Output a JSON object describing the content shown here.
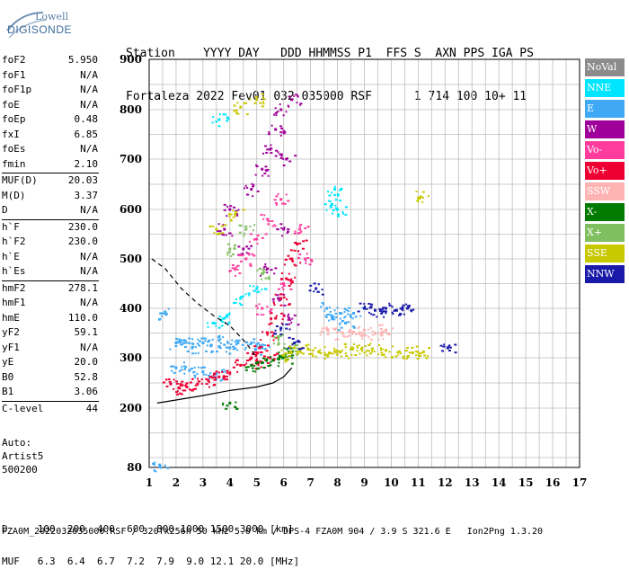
{
  "logo": {
    "line1": "Lowell",
    "line2": "DIGISONDE"
  },
  "header": {
    "labels": "Station    YYYY DAY   DDD HHMMSS P1  FFS S  AXN PPS IGA PS",
    "values": "Fortaleza 2022 Fev01 032 035000 RSF      1 714 100 10+ 11"
  },
  "params": {
    "group1": [
      {
        "k": "foF2",
        "v": "5.950"
      },
      {
        "k": "foF1",
        "v": "N/A"
      },
      {
        "k": "foF1p",
        "v": "N/A"
      },
      {
        "k": "foE",
        "v": "N/A"
      },
      {
        "k": "foEp",
        "v": "0.48"
      },
      {
        "k": "fxI",
        "v": "6.85"
      },
      {
        "k": "foEs",
        "v": "N/A"
      },
      {
        "k": "fmin",
        "v": "2.10"
      }
    ],
    "group2": [
      {
        "k": "MUF(D)",
        "v": "20.03"
      },
      {
        "k": "M(D)",
        "v": "3.37"
      },
      {
        "k": "D",
        "v": "N/A"
      }
    ],
    "group3": [
      {
        "k": "h`F",
        "v": "230.0"
      },
      {
        "k": "h`F2",
        "v": "230.0"
      },
      {
        "k": "h`E",
        "v": "N/A"
      },
      {
        "k": "h`Es",
        "v": "N/A"
      }
    ],
    "group4": [
      {
        "k": "hmF2",
        "v": "278.1"
      },
      {
        "k": "hmF1",
        "v": "N/A"
      },
      {
        "k": "hmE",
        "v": "110.0"
      },
      {
        "k": "yF2",
        "v": "59.1"
      },
      {
        "k": "yF1",
        "v": "N/A"
      },
      {
        "k": "yE",
        "v": "20.0"
      },
      {
        "k": "B0",
        "v": "52.8"
      },
      {
        "k": "B1",
        "v": "3.06"
      }
    ],
    "group5": [
      {
        "k": "C-level",
        "v": "44"
      }
    ]
  },
  "auto": {
    "l1": "Auto:",
    "l2": "Artist5",
    "l3": "500200"
  },
  "legend": [
    {
      "label": "NoVal",
      "color": "#8c8c8c"
    },
    {
      "label": "NNE",
      "color": "#00e5ff"
    },
    {
      "label": "E",
      "color": "#3fa9f5"
    },
    {
      "label": "W",
      "color": "#a0009a"
    },
    {
      "label": "Vo-",
      "color": "#ff3c9e"
    },
    {
      "label": "Vo+",
      "color": "#ee0033"
    },
    {
      "label": "SSW",
      "color": "#ffb3b3"
    },
    {
      "label": "X-",
      "color": "#007a00"
    },
    {
      "label": "X+",
      "color": "#7fbf5f"
    },
    {
      "label": "SSE",
      "color": "#c8c800"
    },
    {
      "label": "NNW",
      "color": "#1a1aaa"
    }
  ],
  "footer": {
    "row1": "D     100  200  400  600  800 1000 1500 3000 [km]",
    "row2": "MUF   6.3  6.4  6.7  7.2  7.9  9.0 12.1 20.0 [MHz]",
    "row3": "FZA0M_2022032035000.RSF / 320fx256h 50 kHz 5.0 km / DPS-4 FZA0M 904 / 3.9 S 321.6 E   Ion2Png 1.3.20"
  },
  "chart_data": {
    "type": "scatter",
    "xlim": [
      1,
      17
    ],
    "ylim": [
      80,
      900
    ],
    "x_ticks": [
      1,
      2,
      3,
      4,
      5,
      6,
      7,
      8,
      9,
      10,
      11,
      12,
      13,
      14,
      15,
      16,
      17
    ],
    "y_ticks": [
      80,
      200,
      300,
      400,
      500,
      600,
      700,
      800,
      900
    ],
    "series": [
      {
        "name": "E",
        "points": [
          [
            1.6,
            390
          ],
          [
            2.0,
            330
          ],
          [
            2.3,
            335
          ],
          [
            2.6,
            320
          ],
          [
            3.0,
            330
          ],
          [
            3.3,
            325
          ],
          [
            3.6,
            335
          ],
          [
            4.0,
            320
          ],
          [
            4.3,
            330
          ],
          [
            4.8,
            330
          ],
          [
            5.2,
            320
          ],
          [
            7.6,
            400
          ],
          [
            7.8,
            380
          ],
          [
            8.1,
            390
          ],
          [
            8.3,
            370
          ],
          [
            8.6,
            390
          ],
          [
            2.0,
            280
          ],
          [
            2.5,
            275
          ],
          [
            3.0,
            272
          ],
          [
            3.5,
            268
          ],
          [
            1.4,
            82
          ]
        ]
      },
      {
        "name": "NNE",
        "points": [
          [
            3.4,
            370
          ],
          [
            3.8,
            380
          ],
          [
            4.4,
            420
          ],
          [
            5.0,
            440
          ],
          [
            7.8,
            610
          ],
          [
            7.9,
            640
          ],
          [
            8.0,
            600
          ],
          [
            3.6,
            780
          ]
        ]
      },
      {
        "name": "W",
        "points": [
          [
            3.8,
            560
          ],
          [
            4.0,
            600
          ],
          [
            4.5,
            520
          ],
          [
            4.8,
            640
          ],
          [
            5.2,
            680
          ],
          [
            5.5,
            720
          ],
          [
            5.7,
            760
          ],
          [
            5.9,
            800
          ],
          [
            6.1,
            700
          ],
          [
            6.3,
            820
          ],
          [
            6.0,
            560
          ],
          [
            5.4,
            480
          ],
          [
            5.8,
            420
          ],
          [
            6.2,
            380
          ]
        ]
      },
      {
        "name": "Vo-",
        "points": [
          [
            4.2,
            480
          ],
          [
            4.6,
            500
          ],
          [
            5.0,
            540
          ],
          [
            5.4,
            580
          ],
          [
            5.9,
            620
          ],
          [
            6.6,
            560
          ],
          [
            6.8,
            500
          ],
          [
            6.0,
            450
          ],
          [
            5.2,
            400
          ]
        ]
      },
      {
        "name": "Vo+",
        "points": [
          [
            1.8,
            248
          ],
          [
            2.1,
            240
          ],
          [
            2.4,
            242
          ],
          [
            2.8,
            248
          ],
          [
            3.2,
            255
          ],
          [
            3.6,
            262
          ],
          [
            4.0,
            270
          ],
          [
            4.4,
            285
          ],
          [
            4.8,
            300
          ],
          [
            5.1,
            320
          ],
          [
            5.4,
            350
          ],
          [
            5.7,
            380
          ],
          [
            5.9,
            420
          ],
          [
            6.1,
            460
          ],
          [
            6.3,
            500
          ],
          [
            6.5,
            530
          ],
          [
            5.0,
            290
          ],
          [
            5.5,
            300
          ]
        ]
      },
      {
        "name": "SSW",
        "points": [
          [
            7.6,
            360
          ],
          [
            8.2,
            350
          ],
          [
            8.6,
            352
          ],
          [
            9.0,
            356
          ],
          [
            9.4,
            350
          ],
          [
            9.8,
            356
          ]
        ]
      },
      {
        "name": "X-",
        "points": [
          [
            4.8,
            285
          ],
          [
            5.2,
            290
          ],
          [
            5.6,
            295
          ],
          [
            6.0,
            300
          ],
          [
            6.2,
            310
          ],
          [
            4.0,
            210
          ]
        ]
      },
      {
        "name": "X+",
        "points": [
          [
            4.0,
            520
          ],
          [
            4.6,
            560
          ],
          [
            5.2,
            470
          ],
          [
            5.8,
            340
          ],
          [
            6.4,
            320
          ]
        ]
      },
      {
        "name": "SSE",
        "points": [
          [
            6.4,
            320
          ],
          [
            6.9,
            318
          ],
          [
            7.3,
            312
          ],
          [
            7.7,
            310
          ],
          [
            8.1,
            312
          ],
          [
            8.5,
            318
          ],
          [
            8.9,
            318
          ],
          [
            9.3,
            318
          ],
          [
            9.8,
            315
          ],
          [
            10.3,
            312
          ],
          [
            10.8,
            310
          ],
          [
            11.2,
            312
          ],
          [
            6.0,
            305
          ],
          [
            3.5,
            560
          ],
          [
            4.2,
            590
          ],
          [
            4.4,
            805
          ],
          [
            5.0,
            820
          ],
          [
            11.1,
            625
          ]
        ]
      },
      {
        "name": "NNW",
        "points": [
          [
            9.0,
            400
          ],
          [
            9.4,
            396
          ],
          [
            9.8,
            400
          ],
          [
            10.2,
            396
          ],
          [
            10.6,
            400
          ],
          [
            7.2,
            440
          ],
          [
            5.9,
            360
          ],
          [
            6.4,
            330
          ],
          [
            12.1,
            320
          ]
        ]
      }
    ],
    "trace_lower": [
      [
        1.3,
        210
      ],
      [
        2.0,
        216
      ],
      [
        3.0,
        225
      ],
      [
        4.0,
        235
      ],
      [
        5.0,
        242
      ],
      [
        5.6,
        250
      ],
      [
        6.0,
        262
      ],
      [
        6.3,
        280
      ]
    ],
    "trace_dashed": [
      [
        1.1,
        500
      ],
      [
        1.6,
        480
      ],
      [
        2.2,
        440
      ],
      [
        2.8,
        410
      ],
      [
        3.4,
        385
      ],
      [
        4.0,
        365
      ],
      [
        4.6,
        330
      ],
      [
        5.0,
        300
      ]
    ]
  }
}
